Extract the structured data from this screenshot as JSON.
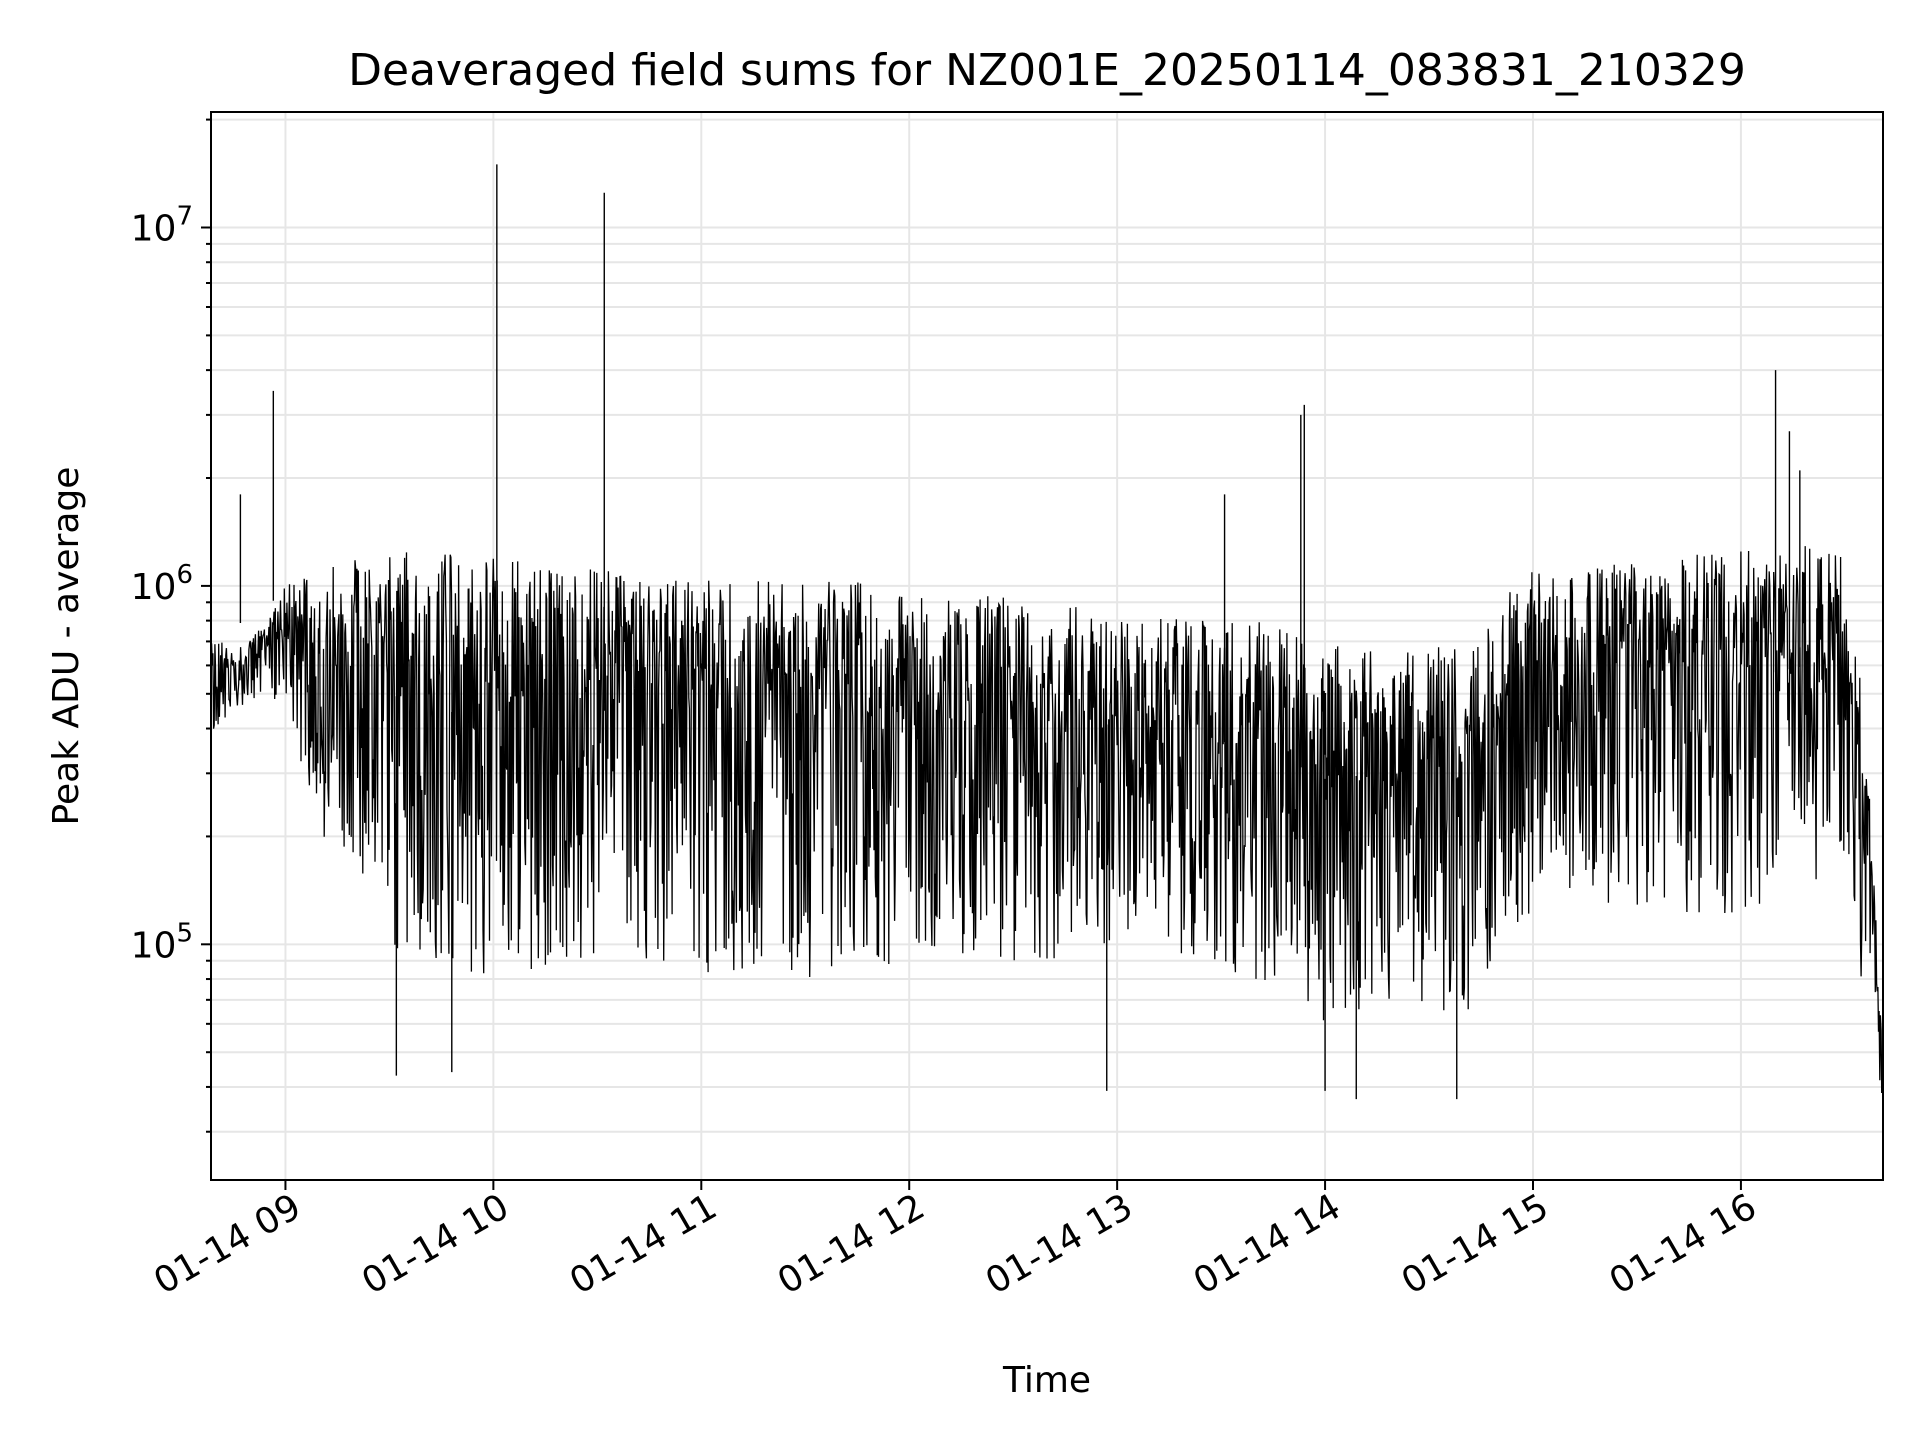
{
  "chart_data": {
    "type": "line",
    "title": "Deaveraged field sums for NZ001E_20250114_083831_210329",
    "xlabel": "Time",
    "ylabel": "Peak ADU - average",
    "yscale": "log",
    "ylim": [
      22000,
      21000000
    ],
    "xlim": [
      "2025-01-14 08:38:31",
      "2025-01-14 16:41:00"
    ],
    "grid": true,
    "line_color": "#000000",
    "x_ticks": [
      {
        "t": "2025-01-14 09:00",
        "label": "01-14 09"
      },
      {
        "t": "2025-01-14 10:00",
        "label": "01-14 10"
      },
      {
        "t": "2025-01-14 11:00",
        "label": "01-14 11"
      },
      {
        "t": "2025-01-14 12:00",
        "label": "01-14 12"
      },
      {
        "t": "2025-01-14 13:00",
        "label": "01-14 13"
      },
      {
        "t": "2025-01-14 14:00",
        "label": "01-14 14"
      },
      {
        "t": "2025-01-14 15:00",
        "label": "01-14 15"
      },
      {
        "t": "2025-01-14 16:00",
        "label": "01-14 16"
      }
    ],
    "y_ticks": [
      {
        "value": 100000,
        "base": "10",
        "exp": "5"
      },
      {
        "value": 1000000,
        "base": "10",
        "exp": "6"
      },
      {
        "value": 10000000,
        "base": "10",
        "exp": "7"
      }
    ],
    "envelope": {
      "times": [
        "2025-01-14 08:38",
        "2025-01-14 08:45",
        "2025-01-14 08:55",
        "2025-01-14 09:00",
        "2025-01-14 09:10",
        "2025-01-14 09:20",
        "2025-01-14 09:30",
        "2025-01-14 09:45",
        "2025-01-14 10:00",
        "2025-01-14 10:20",
        "2025-01-14 10:40",
        "2025-01-14 11:00",
        "2025-01-14 11:30",
        "2025-01-14 12:00",
        "2025-01-14 12:20",
        "2025-01-14 12:40",
        "2025-01-14 13:00",
        "2025-01-14 13:20",
        "2025-01-14 13:40",
        "2025-01-14 14:00",
        "2025-01-14 14:20",
        "2025-01-14 14:40",
        "2025-01-14 14:50",
        "2025-01-14 15:00",
        "2025-01-14 15:30",
        "2025-01-14 16:00",
        "2025-01-14 16:20",
        "2025-01-14 16:30",
        "2025-01-14 16:35",
        "2025-01-14 16:38",
        "2025-01-14 16:41"
      ],
      "upper": [
        750000,
        650000,
        800000,
        1000000,
        1100000,
        1200000,
        1250000,
        1250000,
        1200000,
        1150000,
        1100000,
        1050000,
        1050000,
        1000000,
        950000,
        900000,
        850000,
        800000,
        800000,
        700000,
        650000,
        700000,
        900000,
        1100000,
        1200000,
        1250000,
        1300000,
        1200000,
        500000,
        200000,
        45000
      ],
      "lower": [
        380000,
        450000,
        500000,
        450000,
        200000,
        150000,
        100000,
        80000,
        80000,
        90000,
        90000,
        80000,
        80000,
        90000,
        90000,
        90000,
        100000,
        90000,
        80000,
        60000,
        70000,
        60000,
        100000,
        120000,
        120000,
        120000,
        140000,
        150000,
        70000,
        80000,
        30000
      ]
    },
    "spikes": [
      {
        "t": "2025-01-14 08:56:30",
        "y": 3500000
      },
      {
        "t": "2025-01-14 10:01:00",
        "y": 15000000
      },
      {
        "t": "2025-01-14 10:32:00",
        "y": 12500000
      },
      {
        "t": "2025-01-14 13:31:00",
        "y": 1800000
      },
      {
        "t": "2025-01-14 13:53:00",
        "y": 3000000
      },
      {
        "t": "2025-01-14 13:54:00",
        "y": 3200000
      },
      {
        "t": "2025-01-14 16:10:00",
        "y": 4000000
      },
      {
        "t": "2025-01-14 16:14:00",
        "y": 2700000
      },
      {
        "t": "2025-01-14 16:17:00",
        "y": 2100000
      },
      {
        "t": "2025-01-14 08:47:00",
        "y": 1800000
      }
    ],
    "dips": [
      {
        "t": "2025-01-14 09:32:00",
        "y": 43000
      },
      {
        "t": "2025-01-14 09:48:00",
        "y": 44000
      },
      {
        "t": "2025-01-14 12:57:00",
        "y": 39000
      },
      {
        "t": "2025-01-14 14:00:00",
        "y": 39000
      },
      {
        "t": "2025-01-14 14:09:00",
        "y": 37000
      },
      {
        "t": "2025-01-14 14:38:00",
        "y": 37000
      },
      {
        "t": "2025-01-14 16:41:00",
        "y": 30000
      }
    ]
  }
}
